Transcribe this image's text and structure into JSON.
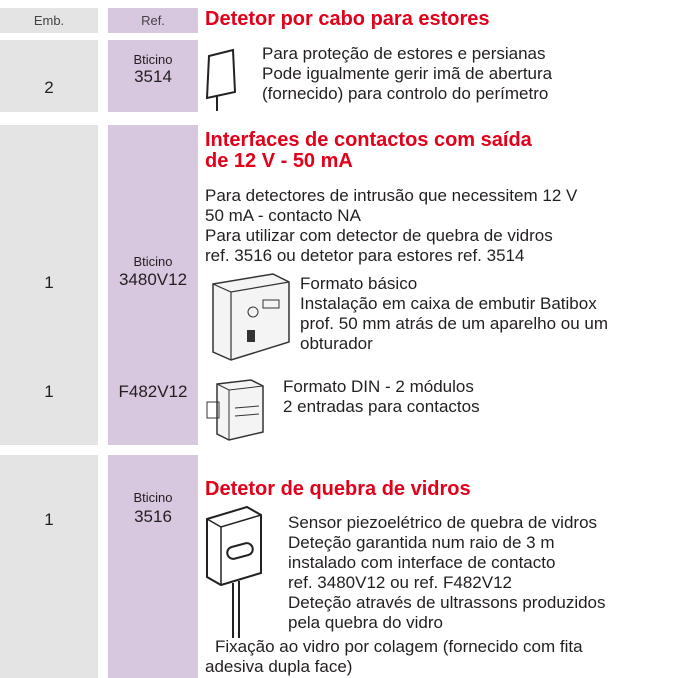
{
  "header": {
    "emb": "Emb.",
    "ref": "Ref."
  },
  "sections": [
    {
      "title": [
        "Detetor por cabo para estores"
      ],
      "description": [
        "Para proteção de estores e persianas",
        "Pode igualmente gerir imã de abertura",
        "(fornecido) para controlo do perímetro"
      ],
      "items": [
        {
          "emb": "2",
          "brand": "Bticino",
          "ref": "3514"
        }
      ]
    },
    {
      "title": [
        "Interfaces de contactos com saída",
        "de 12 V - 50 mA"
      ],
      "description": [
        "Para detectores de intrusão que necessitem 12 V",
        "50 mA - contacto NA",
        "Para utilizar com detector de quebra de vidros",
        "ref. 3516 ou detetor para estores ref. 3514"
      ],
      "items": [
        {
          "emb": "1",
          "brand": "Bticino",
          "ref": "3480V12",
          "text": [
            "Formato básico",
            "Instalação em caixa de embutir Batibox",
            "prof. 50 mm atrás de um aparelho ou um",
            "obturador"
          ]
        },
        {
          "emb": "1",
          "ref": "F482V12",
          "text": [
            "Formato DIN - 2 módulos",
            "2 entradas para contactos"
          ]
        }
      ]
    },
    {
      "title": [
        "Detetor de quebra de vidros"
      ],
      "items": [
        {
          "emb": "1",
          "brand": "Bticino",
          "ref": "3516",
          "text": [
            "Sensor piezoelétrico de quebra de vidros",
            "Deteção garantida num raio de 3 m",
            "instalado com interface de contacto",
            "ref. 3480V12 ou ref. F482V12",
            "Deteção através de ultrassons produzidos",
            "pela quebra do vidro"
          ],
          "note": [
            "Fixação ao vidro por colagem (fornecido com fita",
            "adesiva dupla face)"
          ]
        }
      ]
    }
  ]
}
